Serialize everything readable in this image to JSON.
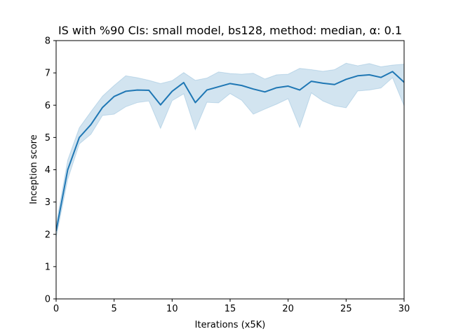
{
  "chart_data": {
    "type": "line",
    "title": "IS with %90 CIs: small model, bs128, method: median, α: 0.1",
    "xlabel": "Iterations (x5K)",
    "ylabel": "Inception score",
    "xlim": [
      0,
      30
    ],
    "ylim": [
      0,
      8
    ],
    "xticks": [
      0,
      5,
      10,
      15,
      20,
      25,
      30
    ],
    "yticks": [
      0,
      1,
      2,
      3,
      4,
      5,
      6,
      7,
      8
    ],
    "grid": false,
    "colors": {
      "line": "#1f77b4",
      "band": "#1f77b4"
    },
    "series": [
      {
        "x": [
          0,
          1,
          2,
          3,
          4,
          5,
          6,
          7,
          8,
          9,
          10,
          11,
          12,
          13,
          14,
          15,
          16,
          17,
          18,
          19,
          20,
          21,
          22,
          23,
          24,
          25,
          26,
          27,
          28,
          29,
          30
        ],
        "values": [
          2.1,
          4.0,
          5.0,
          5.4,
          5.93,
          6.27,
          6.43,
          6.47,
          6.46,
          6.01,
          6.43,
          6.7,
          6.08,
          6.47,
          6.57,
          6.67,
          6.61,
          6.5,
          6.41,
          6.54,
          6.59,
          6.47,
          6.74,
          6.68,
          6.64,
          6.8,
          6.91,
          6.94,
          6.86,
          7.04,
          6.71
        ],
        "ci_lower": [
          1.9,
          3.7,
          4.8,
          5.1,
          5.68,
          5.72,
          5.95,
          6.08,
          6.13,
          5.28,
          6.14,
          6.35,
          5.24,
          6.09,
          6.07,
          6.36,
          6.15,
          5.72,
          5.88,
          6.03,
          6.2,
          5.31,
          6.38,
          6.13,
          5.98,
          5.92,
          6.44,
          6.47,
          6.53,
          6.85,
          5.98
        ],
        "ci_upper": [
          2.3,
          4.3,
          5.3,
          5.8,
          6.28,
          6.61,
          6.91,
          6.85,
          6.77,
          6.67,
          6.76,
          7.01,
          6.77,
          6.84,
          7.03,
          6.98,
          6.96,
          6.99,
          6.81,
          6.94,
          6.96,
          7.14,
          7.1,
          7.05,
          7.1,
          7.3,
          7.22,
          7.29,
          7.19,
          7.24,
          7.27
        ]
      }
    ]
  }
}
